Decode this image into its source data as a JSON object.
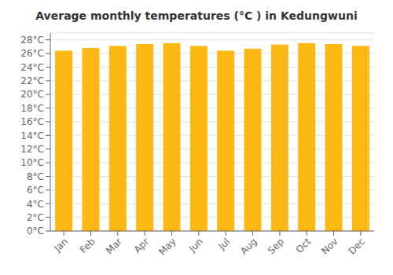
{
  "chart_data": {
    "type": "bar",
    "title": "Average monthly temperatures (°C ) in Kedungwuni",
    "categories": [
      "Jan",
      "Feb",
      "Mar",
      "Apr",
      "May",
      "Jun",
      "Jul",
      "Aug",
      "Sep",
      "Oct",
      "Nov",
      "Dec"
    ],
    "values": [
      26.4,
      26.8,
      27.1,
      27.4,
      27.5,
      27.1,
      26.4,
      26.7,
      27.3,
      27.5,
      27.4,
      27.1
    ],
    "color": "#FDB813",
    "ylim": [
      0,
      29
    ],
    "yticks": [
      {
        "value": 0,
        "label": "0°C"
      },
      {
        "value": 2,
        "label": "2°C"
      },
      {
        "value": 4,
        "label": "4°C"
      },
      {
        "value": 6,
        "label": "6°C"
      },
      {
        "value": 8,
        "label": "8°C"
      },
      {
        "value": 10,
        "label": "10°C"
      },
      {
        "value": 12,
        "label": "12°C"
      },
      {
        "value": 14,
        "label": "14°C"
      },
      {
        "value": 16,
        "label": "16°C"
      },
      {
        "value": 18,
        "label": "18°C"
      },
      {
        "value": 20,
        "label": "20°C"
      },
      {
        "value": 22,
        "label": "22°C"
      },
      {
        "value": 24,
        "label": "24°C"
      },
      {
        "value": 26,
        "label": "26°C"
      },
      {
        "value": 28,
        "label": "28°C"
      }
    ],
    "grid": true
  }
}
